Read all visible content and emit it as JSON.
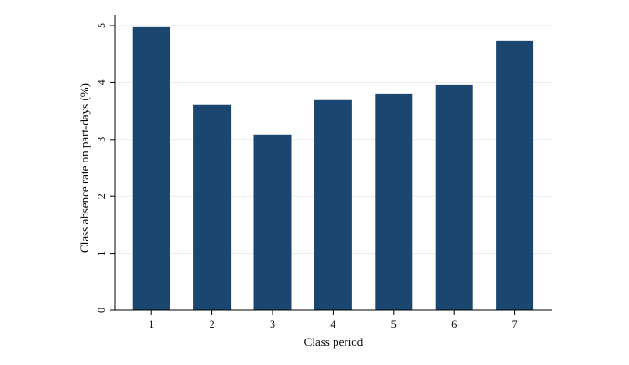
{
  "chart_data": {
    "type": "bar",
    "categories": [
      "1",
      "2",
      "3",
      "4",
      "5",
      "6",
      "7"
    ],
    "values": [
      4.97,
      3.61,
      3.08,
      3.69,
      3.8,
      3.96,
      4.73
    ],
    "xlabel": "Class period",
    "ylabel": "Class absence rate on part-days (%)",
    "ylim": [
      0,
      5
    ],
    "yticks": [
      "0",
      "1",
      "2",
      "3",
      "4",
      "5"
    ],
    "grid": true,
    "bar_color": "#1b4670"
  }
}
